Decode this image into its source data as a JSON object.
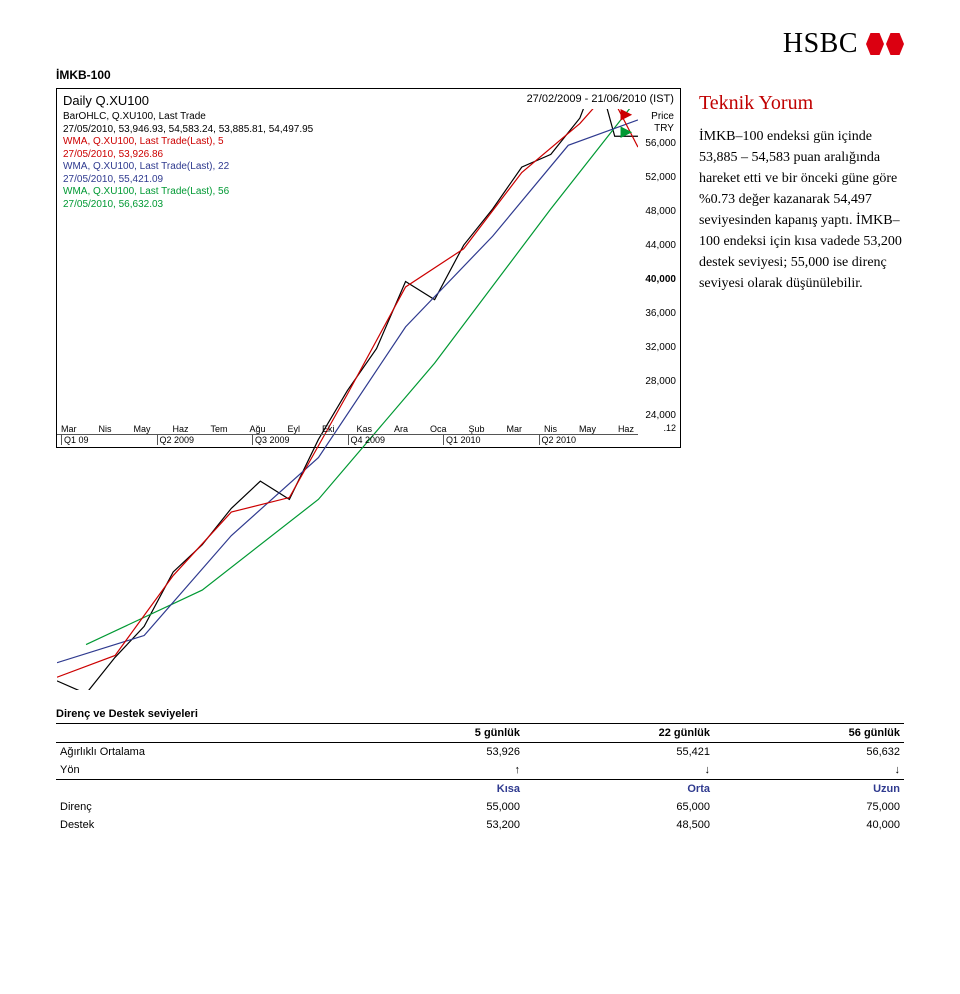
{
  "brand": {
    "name": "HSBC",
    "logo_color": "#db0011"
  },
  "section_label": "İMKB-100",
  "chart": {
    "type": "line",
    "title": "Daily Q.XU100",
    "timestamp": "27/02/2009 - 21/06/2010 (IST)",
    "price_label": "Price",
    "currency_label": "TRY",
    "legend": [
      {
        "label": "BarOHLC, Q.XU100, Last Trade",
        "color": "#000000"
      },
      {
        "label": "27/05/2010, 53,946.93, 54,583.24, 53,885.81, 54,497.95",
        "color": "#000000"
      },
      {
        "label": "WMA, Q.XU100, Last Trade(Last), 5",
        "color": "#cc0000"
      },
      {
        "label": "27/05/2010, 53,926.86",
        "color": "#cc0000"
      },
      {
        "label": "WMA, Q.XU100, Last Trade(Last), 22",
        "color": "#2f3a8f"
      },
      {
        "label": "27/05/2010, 55,421.09",
        "color": "#2f3a8f"
      },
      {
        "label": "WMA, Q.XU100, Last Trade(Last), 56",
        "color": "#009933"
      },
      {
        "label": "27/05/2010, 56,632.03",
        "color": "#009933"
      }
    ],
    "ylim": [
      24000,
      56000
    ],
    "yticks": [
      "56,000",
      "52,000",
      "48,000",
      "44,000",
      "40,000",
      "36,000",
      "32,000",
      "28,000",
      "24,000"
    ],
    "ytick_bold": "40,000",
    "corner_tick": ".12",
    "months": [
      "Mar",
      "Nis",
      "May",
      "Haz",
      "Tem",
      "Ağu",
      "Eyl",
      "Eki",
      "Kas",
      "Ara",
      "Oca",
      "Şub",
      "Mar",
      "Nis",
      "May",
      "Haz"
    ],
    "quarters": [
      "Q1 09",
      "Q2 2009",
      "Q3 2009",
      "Q4 2009",
      "Q1 2010",
      "Q2 2010"
    ],
    "series": {
      "ohlc": {
        "color": "#000000",
        "points": [
          [
            0,
            24500
          ],
          [
            5,
            23800
          ],
          [
            10,
            25800
          ],
          [
            15,
            27500
          ],
          [
            20,
            30500
          ],
          [
            25,
            32000
          ],
          [
            30,
            34000
          ],
          [
            35,
            35500
          ],
          [
            40,
            34500
          ],
          [
            45,
            37800
          ],
          [
            50,
            40500
          ],
          [
            55,
            42800
          ],
          [
            60,
            46500
          ],
          [
            65,
            45500
          ],
          [
            70,
            48500
          ],
          [
            75,
            50500
          ],
          [
            80,
            52800
          ],
          [
            85,
            53500
          ],
          [
            90,
            55500
          ],
          [
            93,
            58000
          ],
          [
            96,
            54500
          ],
          [
            100,
            54500
          ]
        ]
      },
      "wma5": {
        "color": "#cc0000",
        "points": [
          [
            0,
            24700
          ],
          [
            10,
            25900
          ],
          [
            20,
            30300
          ],
          [
            30,
            33800
          ],
          [
            40,
            34600
          ],
          [
            50,
            40300
          ],
          [
            60,
            46200
          ],
          [
            70,
            48300
          ],
          [
            80,
            52500
          ],
          [
            90,
            55200
          ],
          [
            95,
            57000
          ],
          [
            100,
            53900
          ]
        ]
      },
      "wma22": {
        "color": "#2f3a8f",
        "points": [
          [
            0,
            25500
          ],
          [
            15,
            27000
          ],
          [
            30,
            32500
          ],
          [
            45,
            36800
          ],
          [
            60,
            44000
          ],
          [
            75,
            49000
          ],
          [
            88,
            54000
          ],
          [
            100,
            55400
          ]
        ]
      },
      "wma56": {
        "color": "#009933",
        "points": [
          [
            5,
            26500
          ],
          [
            25,
            29500
          ],
          [
            45,
            34500
          ],
          [
            65,
            42000
          ],
          [
            85,
            50500
          ],
          [
            100,
            56600
          ]
        ]
      }
    },
    "grid_color": "#eeeeee",
    "bg": "#ffffff",
    "line_width": 1.2
  },
  "comment": {
    "title": "Teknik Yorum",
    "body": "İMKB–100 endeksi gün içinde 53,885 – 54,583 puan aralığında hareket etti ve bir önceki güne göre %0.73 değer kazanarak 54,497 seviyesinden kapanış yaptı. İMKB–100 endeksi için kısa vadede 53,200 destek seviyesi; 55,000 ise direnç seviyesi olarak düşünülebilir."
  },
  "levels": {
    "title": "Direnç ve Destek seviyeleri",
    "columns": [
      "",
      "5 günlük",
      "22 günlük",
      "56 günlük"
    ],
    "rows_a": [
      [
        "Ağırlıklı Ortalama",
        "53,926",
        "55,421",
        "56,632"
      ],
      [
        "Yön",
        "↑",
        "↓",
        "↓"
      ]
    ],
    "columns_b": [
      "",
      "Kısa",
      "Orta",
      "Uzun"
    ],
    "rows_b": [
      [
        "Direnç",
        "55,000",
        "65,000",
        "75,000"
      ],
      [
        "Destek",
        "53,200",
        "48,500",
        "40,000"
      ]
    ]
  }
}
